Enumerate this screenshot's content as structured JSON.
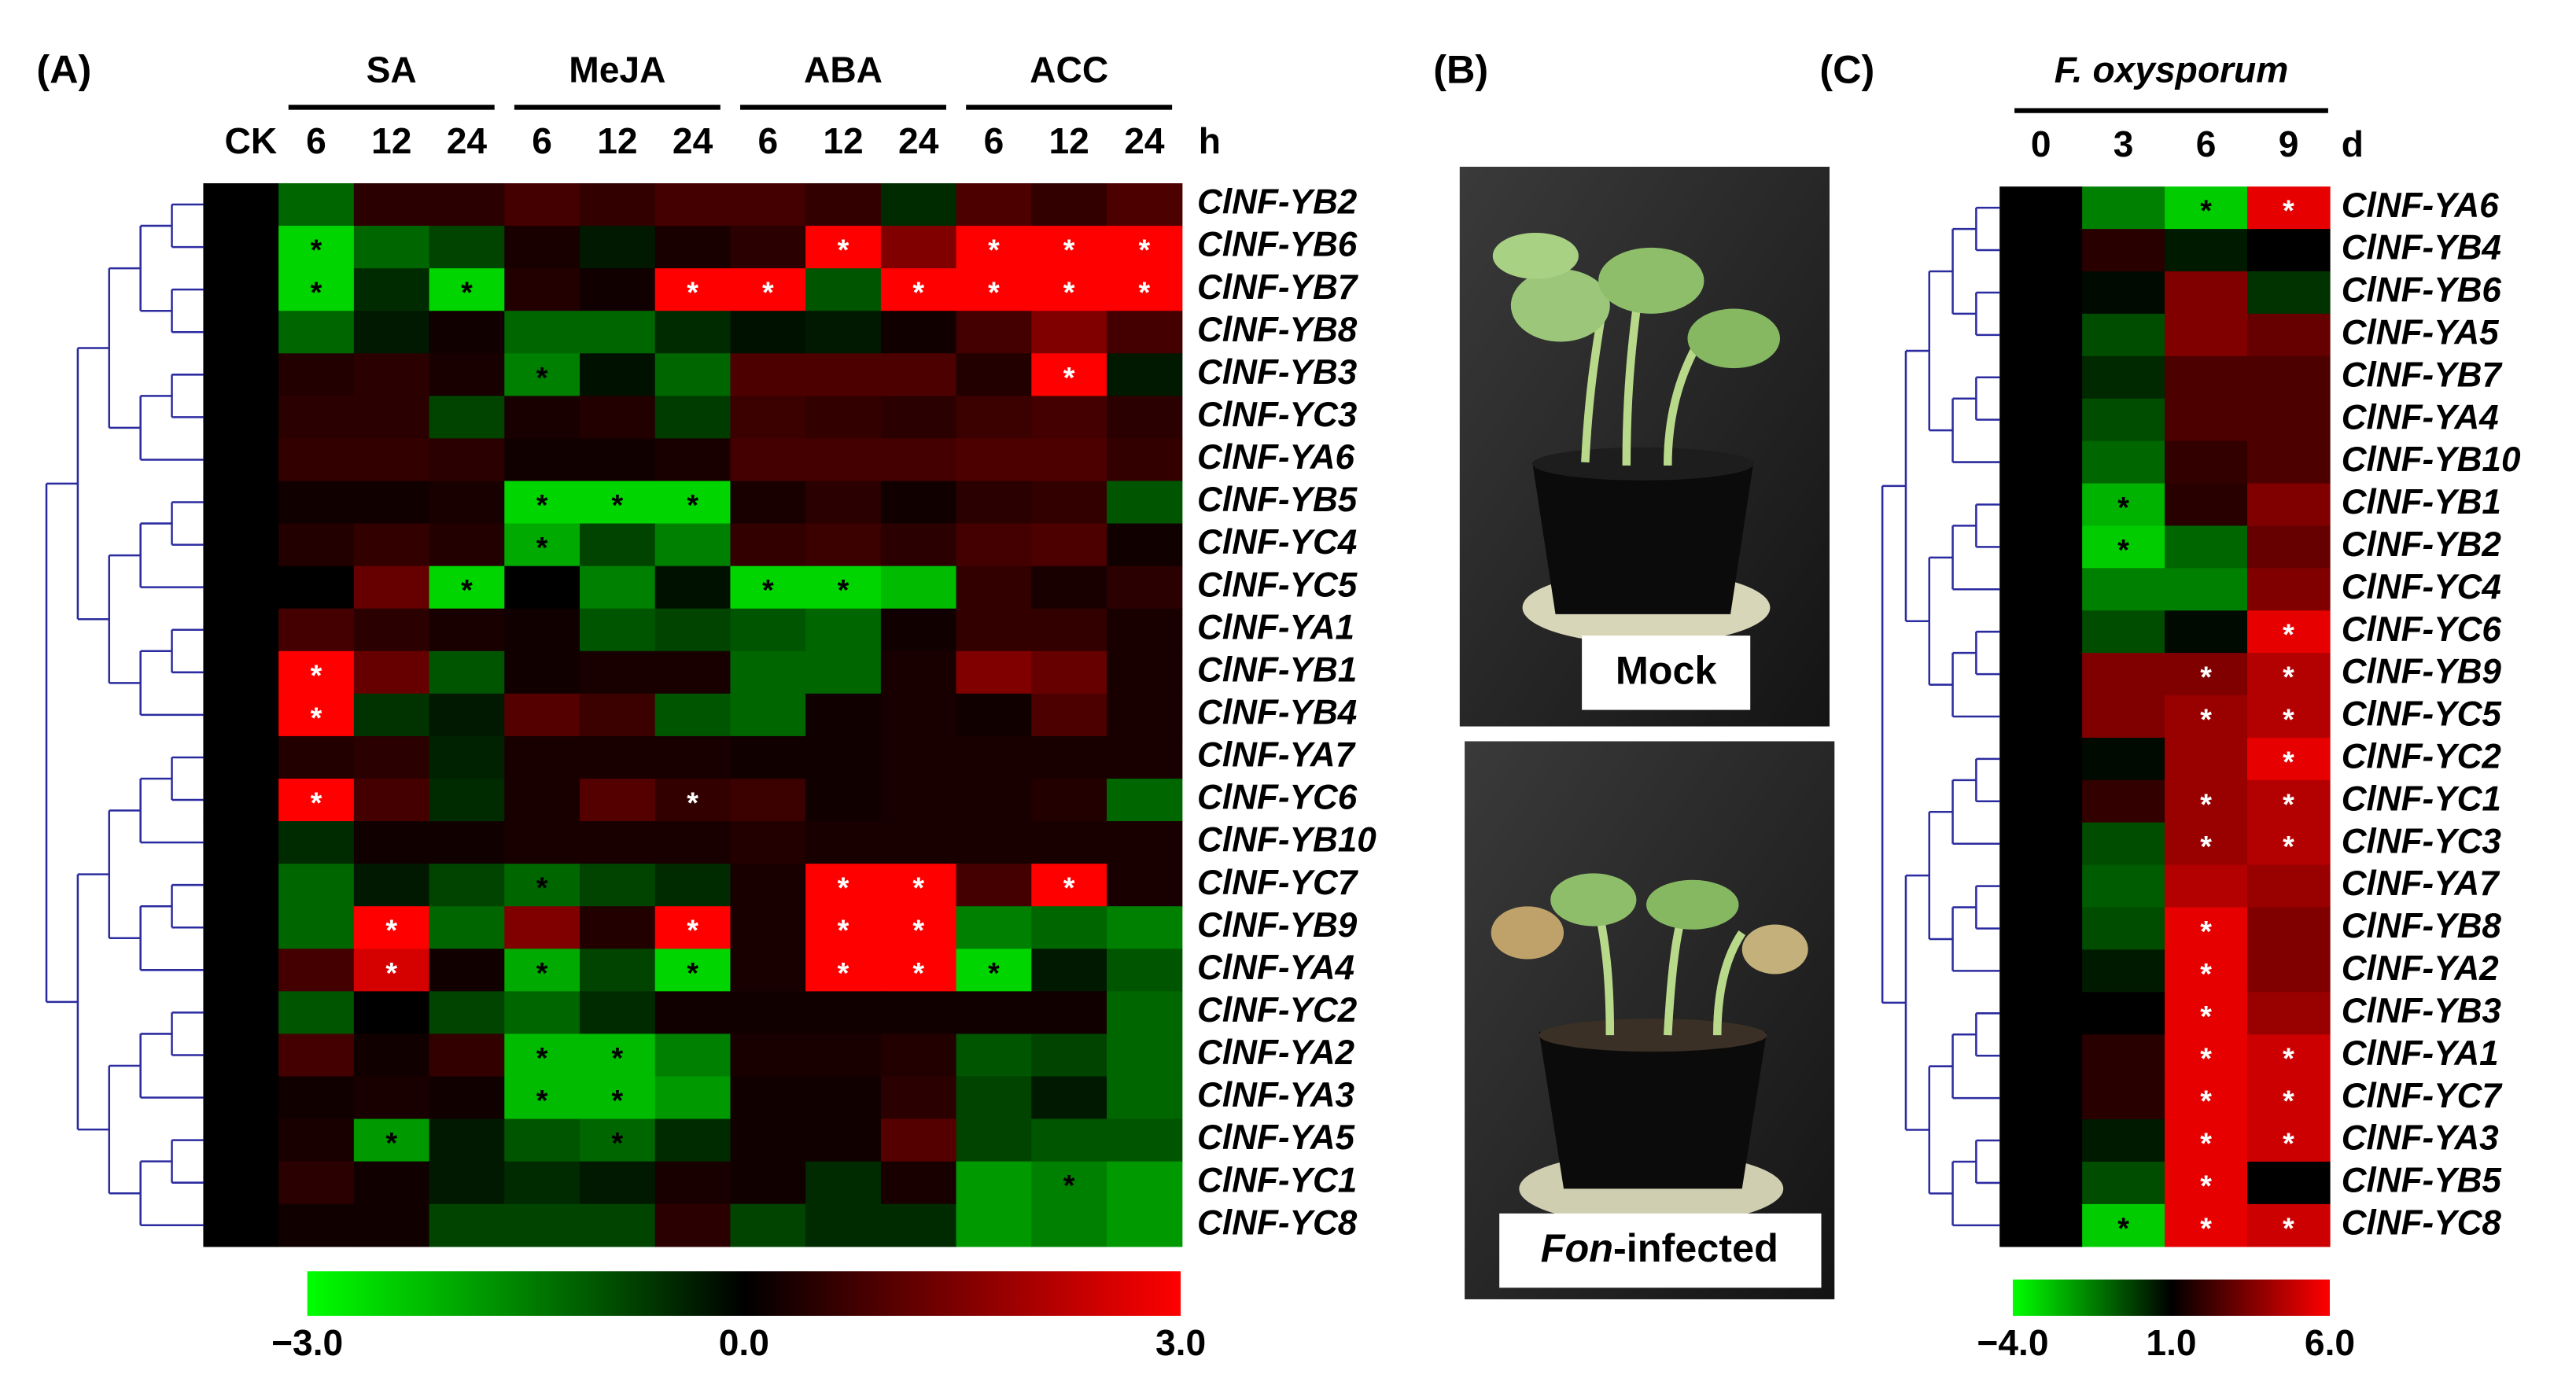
{
  "panel_a": {
    "label": "(A)",
    "control": "CK",
    "unit": "h",
    "groups": [
      {
        "name": "SA",
        "columns": [
          "6",
          "12",
          "24"
        ]
      },
      {
        "name": "MeJA",
        "columns": [
          "6",
          "12",
          "24"
        ]
      },
      {
        "name": "ABA",
        "columns": [
          "6",
          "12",
          "24"
        ]
      },
      {
        "name": "ACC",
        "columns": [
          "6",
          "12",
          "24"
        ]
      }
    ],
    "rows": [
      "ClNF-YB2",
      "ClNF-YB6",
      "ClNF-YB7",
      "ClNF-YB8",
      "ClNF-YB3",
      "ClNF-YC3",
      "ClNF-YA6",
      "ClNF-YB5",
      "ClNF-YC4",
      "ClNF-YC5",
      "ClNF-YA1",
      "ClNF-YB1",
      "ClNF-YB4",
      "ClNF-YA7",
      "ClNF-YC6",
      "ClNF-YB10",
      "ClNF-YC7",
      "ClNF-YB9",
      "ClNF-YA4",
      "ClNF-YC2",
      "ClNF-YA2",
      "ClNF-YA3",
      "ClNF-YA5",
      "ClNF-YC1",
      "ClNF-YC8"
    ],
    "values": [
      [
        0,
        -1.2,
        0.5,
        0.5,
        0.8,
        0.6,
        0.8,
        0.8,
        0.6,
        -0.5,
        0.9,
        0.6,
        0.9
      ],
      [
        0,
        -2.5,
        -1.2,
        -0.8,
        0.3,
        -0.3,
        0.3,
        0.5,
        3,
        1.5,
        3,
        3,
        3
      ],
      [
        0,
        -2.5,
        -0.5,
        -2.5,
        0.4,
        0.2,
        3,
        3,
        -1,
        3,
        3,
        3,
        3
      ],
      [
        0,
        -1.2,
        -0.3,
        0.2,
        -1.2,
        -1.2,
        -0.5,
        -0.2,
        -0.3,
        0.2,
        0.8,
        1.5,
        0.8
      ],
      [
        0,
        0.4,
        0.5,
        0.3,
        -1.5,
        -0.2,
        -1.2,
        0.9,
        0.9,
        0.9,
        0.4,
        3,
        -0.3
      ],
      [
        0,
        0.5,
        0.5,
        -0.8,
        0.3,
        0.4,
        -0.7,
        0.7,
        0.6,
        0.5,
        0.7,
        0.8,
        0.5
      ],
      [
        0,
        0.6,
        0.6,
        0.5,
        0.2,
        0.2,
        0.3,
        0.8,
        0.8,
        0.8,
        0.9,
        0.9,
        0.6
      ],
      [
        0,
        0.2,
        0.2,
        0.3,
        -2.5,
        -2.5,
        -2.5,
        0.3,
        0.5,
        0.2,
        0.5,
        0.6,
        -1
      ],
      [
        0,
        0.4,
        0.6,
        0.4,
        -2,
        -0.8,
        -1.5,
        0.6,
        0.7,
        0.5,
        0.8,
        0.9,
        0.2
      ],
      [
        0,
        0,
        1.2,
        -2.5,
        0,
        -1.5,
        -0.2,
        -2.5,
        -2.5,
        -2.2,
        0.6,
        0.3,
        0.5
      ],
      [
        0,
        0.8,
        0.5,
        0.3,
        0.2,
        -1,
        -0.8,
        -1,
        -1.2,
        0.2,
        0.6,
        0.6,
        0.3
      ],
      [
        0,
        3,
        1.2,
        -1,
        0.2,
        0.3,
        0.3,
        -1.2,
        -1.2,
        0.3,
        1.5,
        1.2,
        0.3
      ],
      [
        0,
        3,
        -0.6,
        -0.3,
        1,
        0.7,
        -1,
        -1.2,
        0.2,
        0.3,
        0.2,
        0.9,
        0.3
      ],
      [
        0,
        0.4,
        0.5,
        -0.4,
        0.3,
        0.3,
        0.3,
        0.2,
        0.2,
        0.3,
        0.3,
        0.3,
        0.3
      ],
      [
        0,
        3,
        0.8,
        -0.5,
        0.3,
        1,
        0.6,
        0.7,
        0.2,
        0.3,
        0.3,
        0.4,
        -1.2
      ],
      [
        0,
        -0.5,
        0.2,
        0.2,
        0.3,
        0.3,
        0.3,
        0.4,
        0.3,
        0.3,
        0.3,
        0.3,
        0.3
      ],
      [
        0,
        -1.2,
        -0.3,
        -0.8,
        -1.2,
        -0.8,
        -0.5,
        0.3,
        3,
        3,
        0.8,
        3,
        0.3
      ],
      [
        0,
        -1.2,
        3,
        -1.2,
        1.5,
        0.4,
        3,
        0.3,
        3,
        3,
        -1.5,
        -1.2,
        -1.5
      ],
      [
        0,
        0.8,
        2.5,
        0.2,
        -2,
        -0.8,
        -2.5,
        0.3,
        3,
        3,
        -2.5,
        -0.3,
        -1
      ],
      [
        0,
        -1,
        0,
        -0.8,
        -1.2,
        -0.5,
        0.2,
        0.2,
        0.2,
        0.2,
        0.2,
        0.2,
        -1.2
      ],
      [
        0,
        0.8,
        0.2,
        0.6,
        -2.2,
        -2.2,
        -1.5,
        0.3,
        0.3,
        0.4,
        -1,
        -0.8,
        -1.2
      ],
      [
        0,
        0.2,
        0.3,
        0.2,
        -2.2,
        -2.2,
        -1.8,
        0.2,
        0.2,
        0.5,
        -0.8,
        -0.3,
        -1.2
      ],
      [
        0,
        0.3,
        -1.8,
        -0.3,
        -1,
        -1.2,
        -0.5,
        0.2,
        0.2,
        1,
        -0.8,
        -1,
        -1
      ],
      [
        0,
        0.5,
        0.2,
        -0.3,
        -0.5,
        -0.3,
        0.3,
        0.2,
        -0.5,
        0.3,
        -1.8,
        -1.5,
        -1.8
      ],
      [
        0,
        0.2,
        0.2,
        -0.8,
        -0.8,
        -0.8,
        0.5,
        -0.8,
        -0.5,
        -0.5,
        -1.8,
        -1.5,
        -1.8
      ]
    ],
    "value_labels": [
      [
        null,
        null,
        null,
        null,
        null,
        null,
        null,
        null,
        null,
        null,
        null,
        null,
        null
      ],
      [
        null,
        "*",
        null,
        null,
        null,
        null,
        null,
        null,
        "*",
        null,
        "*",
        "*",
        "*"
      ],
      [
        null,
        "*",
        null,
        "*",
        null,
        null,
        "*",
        "*",
        null,
        "*",
        "*",
        "*",
        "*"
      ],
      [
        null,
        null,
        null,
        null,
        null,
        null,
        null,
        null,
        null,
        null,
        null,
        null,
        null
      ],
      [
        null,
        null,
        null,
        null,
        "*",
        null,
        null,
        null,
        null,
        null,
        null,
        "*",
        null
      ],
      [
        null,
        null,
        null,
        null,
        null,
        null,
        null,
        null,
        null,
        null,
        null,
        null,
        null
      ],
      [
        null,
        null,
        null,
        null,
        null,
        null,
        null,
        null,
        null,
        null,
        null,
        null,
        null
      ],
      [
        null,
        null,
        null,
        null,
        "*",
        "*",
        "*",
        null,
        null,
        null,
        null,
        null,
        null
      ],
      [
        null,
        null,
        null,
        null,
        "*",
        null,
        null,
        null,
        null,
        null,
        null,
        null,
        null
      ],
      [
        null,
        null,
        null,
        "*",
        null,
        null,
        null,
        "*",
        "*",
        null,
        null,
        null,
        null
      ],
      [
        null,
        null,
        null,
        null,
        null,
        null,
        null,
        null,
        null,
        null,
        null,
        null,
        null
      ],
      [
        null,
        "*",
        null,
        null,
        null,
        null,
        null,
        null,
        null,
        null,
        null,
        null,
        null
      ],
      [
        null,
        "*",
        null,
        null,
        null,
        null,
        null,
        null,
        null,
        null,
        null,
        null,
        null
      ],
      [
        null,
        null,
        null,
        null,
        null,
        null,
        null,
        null,
        null,
        null,
        null,
        null,
        null
      ],
      [
        null,
        "*",
        null,
        null,
        null,
        null,
        "*",
        null,
        null,
        null,
        null,
        null,
        null
      ],
      [
        null,
        null,
        null,
        null,
        null,
        null,
        null,
        null,
        null,
        null,
        null,
        null,
        null
      ],
      [
        null,
        null,
        null,
        null,
        "*",
        null,
        null,
        null,
        "*",
        "*",
        null,
        "*",
        null
      ],
      [
        null,
        null,
        "*",
        null,
        null,
        null,
        "*",
        null,
        "*",
        "*",
        null,
        null,
        null
      ],
      [
        null,
        null,
        "*",
        null,
        "*",
        null,
        "*",
        null,
        "*",
        "*",
        "*",
        null,
        null
      ],
      [
        null,
        null,
        null,
        null,
        null,
        null,
        null,
        null,
        null,
        null,
        null,
        null,
        null
      ],
      [
        null,
        null,
        null,
        null,
        "*",
        "*",
        null,
        null,
        null,
        null,
        null,
        null,
        null
      ],
      [
        null,
        null,
        null,
        null,
        "*",
        "*",
        null,
        null,
        null,
        null,
        null,
        null,
        null
      ],
      [
        null,
        null,
        "*",
        null,
        null,
        "*",
        null,
        null,
        null,
        null,
        null,
        null,
        null
      ],
      [
        null,
        null,
        null,
        null,
        null,
        null,
        null,
        null,
        null,
        null,
        null,
        "*",
        null
      ],
      [
        null,
        null,
        null,
        null,
        null,
        null,
        null,
        null,
        null,
        null,
        null,
        null,
        null
      ]
    ],
    "colorbar": {
      "colors": [
        "#00ff00",
        "#000000",
        "#ff0000"
      ],
      "lim": [
        -3,
        3
      ],
      "ticks": [
        {
          "value": -3,
          "label": "−3.0"
        },
        {
          "value": 0,
          "label": "0.0"
        },
        {
          "value": 3,
          "label": "3.0"
        }
      ]
    }
  },
  "panel_b": {
    "label": "(B)",
    "photos": [
      {
        "label": "Mock"
      },
      {
        "label_italic": "Fon",
        "label_rest": "-infected"
      }
    ]
  },
  "panel_c": {
    "label": "(C)",
    "title": "F. oxysporum",
    "unit": "d",
    "columns": [
      "0",
      "3",
      "6",
      "9"
    ],
    "rows": [
      "ClNF-YA6",
      "ClNF-YB4",
      "ClNF-YB6",
      "ClNF-YA5",
      "ClNF-YB7",
      "ClNF-YA4",
      "ClNF-YB10",
      "ClNF-YB1",
      "ClNF-YB2",
      "ClNF-YC4",
      "ClNF-YC6",
      "ClNF-YB9",
      "ClNF-YC5",
      "ClNF-YC2",
      "ClNF-YC1",
      "ClNF-YC3",
      "ClNF-YA7",
      "ClNF-YB8",
      "ClNF-YA2",
      "ClNF-YB3",
      "ClNF-YA1",
      "ClNF-YC7",
      "ClNF-YA3",
      "ClNF-YB5",
      "ClNF-YC8"
    ],
    "values": [
      [
        1,
        -1.5,
        -3,
        5.5
      ],
      [
        1,
        1.8,
        0.5,
        1
      ],
      [
        1,
        0.8,
        3.5,
        0
      ],
      [
        1,
        -0.5,
        3.5,
        3
      ],
      [
        1,
        0.2,
        2.5,
        2.5
      ],
      [
        1,
        -0.5,
        2.5,
        2.5
      ],
      [
        1,
        -1,
        2,
        2.5
      ],
      [
        1,
        -2.5,
        1.8,
        3.5
      ],
      [
        1,
        -3,
        -1,
        3
      ],
      [
        1,
        -1.5,
        -1.5,
        3.5
      ],
      [
        1,
        -0.5,
        0.8,
        5.5
      ],
      [
        1,
        3.5,
        3.5,
        4.5
      ],
      [
        1,
        3.5,
        4,
        4.5
      ],
      [
        1,
        0.8,
        4,
        5.5
      ],
      [
        1,
        2,
        4,
        4.5
      ],
      [
        1,
        -0.5,
        4,
        4.5
      ],
      [
        1,
        -0.8,
        4.5,
        4
      ],
      [
        1,
        -0.5,
        5.5,
        3.5
      ],
      [
        1,
        0.5,
        5.5,
        3.5
      ],
      [
        1,
        1,
        5.5,
        4
      ],
      [
        1,
        1.8,
        5.5,
        5
      ],
      [
        1,
        1.8,
        5.5,
        5
      ],
      [
        1,
        0.5,
        5.5,
        5
      ],
      [
        1,
        -0.5,
        5.5,
        1
      ],
      [
        1,
        -3,
        5.5,
        5
      ]
    ],
    "value_labels": [
      [
        null,
        null,
        "*",
        "*"
      ],
      [
        null,
        null,
        null,
        null
      ],
      [
        null,
        null,
        null,
        null
      ],
      [
        null,
        null,
        null,
        null
      ],
      [
        null,
        null,
        null,
        null
      ],
      [
        null,
        null,
        null,
        null
      ],
      [
        null,
        null,
        null,
        null
      ],
      [
        null,
        "*",
        null,
        null
      ],
      [
        null,
        "*",
        null,
        null
      ],
      [
        null,
        null,
        null,
        null
      ],
      [
        null,
        null,
        null,
        "*"
      ],
      [
        null,
        null,
        "*",
        "*"
      ],
      [
        null,
        null,
        "*",
        "*"
      ],
      [
        null,
        null,
        null,
        "*"
      ],
      [
        null,
        null,
        "*",
        "*"
      ],
      [
        null,
        null,
        "*",
        "*"
      ],
      [
        null,
        null,
        null,
        null
      ],
      [
        null,
        null,
        "*",
        null
      ],
      [
        null,
        null,
        "*",
        null
      ],
      [
        null,
        null,
        "*",
        null
      ],
      [
        null,
        null,
        "*",
        "*"
      ],
      [
        null,
        null,
        "*",
        "*"
      ],
      [
        null,
        null,
        "*",
        "*"
      ],
      [
        null,
        null,
        "*",
        null
      ],
      [
        null,
        "*",
        "*",
        "*"
      ]
    ],
    "colorbar": {
      "colors": [
        "#00ff00",
        "#000000",
        "#ff0000"
      ],
      "lim": [
        -4,
        6
      ],
      "ticks": [
        {
          "value": -4,
          "label": "−4.0"
        },
        {
          "value": 1,
          "label": "1.0"
        },
        {
          "value": 6,
          "label": "6.0"
        }
      ]
    }
  }
}
